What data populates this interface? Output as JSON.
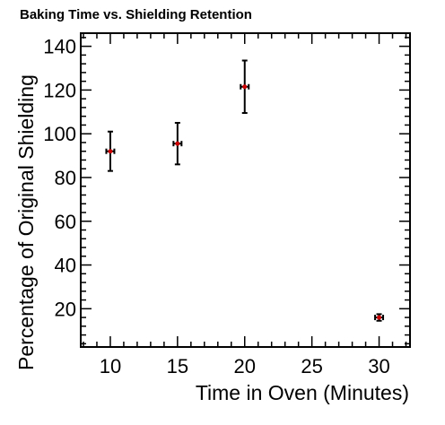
{
  "chart_data": {
    "type": "scatter",
    "title": "Baking Time vs. Shielding Retention",
    "xlabel": "Time in Oven (Minutes)",
    "ylabel": "Percentage of Original Shielding",
    "xlim": [
      7.8,
      32.3
    ],
    "ylim": [
      2.5,
      146
    ],
    "xticks": [
      10,
      15,
      20,
      25,
      30
    ],
    "yticks": [
      20,
      40,
      60,
      80,
      100,
      120,
      140
    ],
    "grid": false,
    "series": [
      {
        "points": [
          {
            "x": 10,
            "y": 92,
            "xerr": 0.3,
            "yerr": 9
          },
          {
            "x": 15,
            "y": 95.5,
            "xerr": 0.3,
            "yerr": 9.5
          },
          {
            "x": 20,
            "y": 121.5,
            "xerr": 0.3,
            "yerr": 12
          },
          {
            "x": 30,
            "y": 16,
            "xerr": 0.3,
            "yerr": 1.5
          }
        ],
        "marker_color": "#cc0000",
        "errorbar_color": "#000000"
      }
    ]
  }
}
